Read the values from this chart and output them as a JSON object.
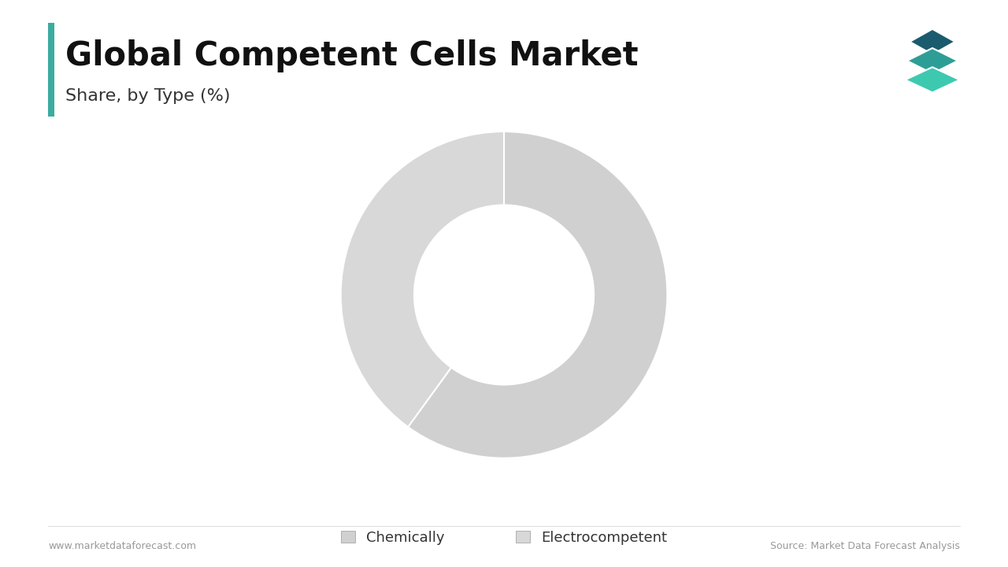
{
  "title": "Global Competent Cells Market",
  "subtitle": "Share, by Type (%)",
  "segments": [
    "Chemically",
    "Electrocompetent"
  ],
  "values": [
    60,
    40
  ],
  "colors": [
    "#d0d0d0",
    "#d8d8d8"
  ],
  "wedge_edge_color": "#ffffff",
  "background_color": "#ffffff",
  "accent_color": "#3aaca0",
  "donut_width": 0.45,
  "title_fontsize": 30,
  "subtitle_fontsize": 16,
  "legend_fontsize": 13,
  "footer_left": "www.marketdataforecast.com",
  "footer_right": "Source: Market Data Forecast Analysis",
  "footer_fontsize": 9,
  "logo_colors": [
    "#1a5c6e",
    "#2d9e96",
    "#3dc9b0"
  ]
}
